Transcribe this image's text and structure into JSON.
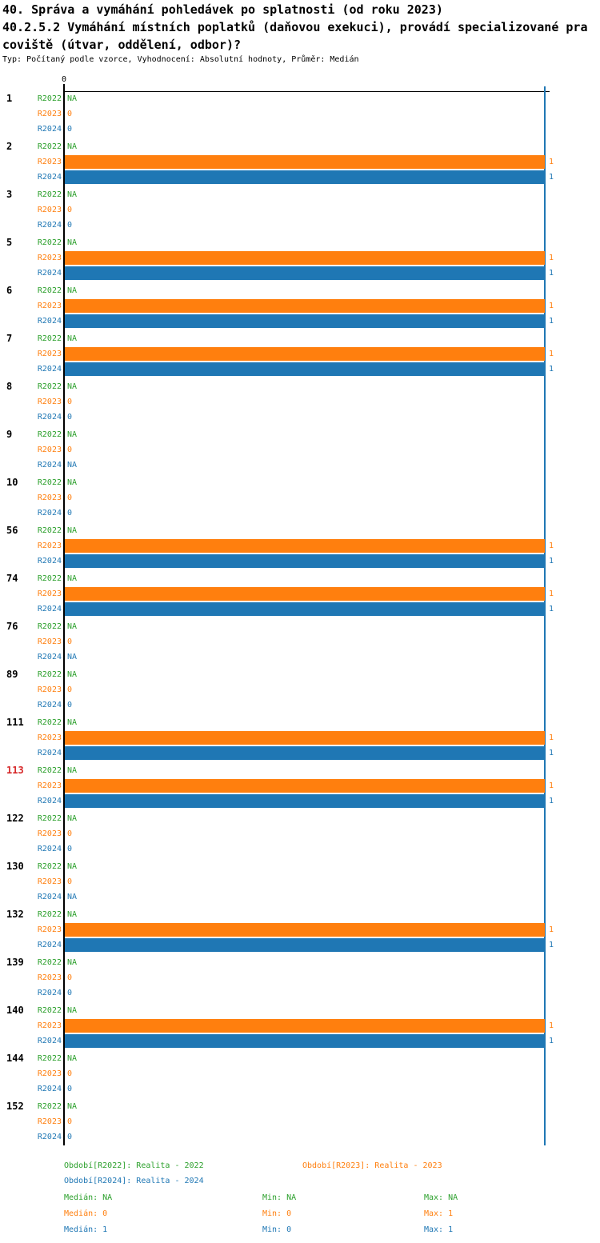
{
  "header": {
    "title_line1": "40. Správa a vymáhání pohledávek po splatnosti (od roku 2023)",
    "title_line2": "40.2.5.2 Vymáhání místních poplatků (daňovou exekuci), provádí specializované pra",
    "title_line3": "coviště (útvar, oddělení, odbor)?",
    "subtitle": "Typ: Počítaný podle vzorce, Vyhodnocení: Absolutní hodnoty, Průměr: Medián"
  },
  "chart_data": {
    "type": "bar",
    "orientation": "horizontal",
    "x_axis": {
      "tick_labels": [
        "0"
      ],
      "xlim": [
        0,
        1
      ],
      "median_gridline_value": 1
    },
    "series": [
      "R2022",
      "R2023",
      "R2024"
    ],
    "colors": {
      "r2022": "#2ca02c",
      "r2023": "#ff7f0e",
      "r2024": "#1f77b4",
      "highlight_row": "#d62728",
      "axis": "#000000",
      "gridline": "#1f77b4"
    },
    "groups": [
      {
        "id": "1",
        "highlight": false,
        "R2022": "NA",
        "R2023": "0",
        "R2024": "0"
      },
      {
        "id": "2",
        "highlight": false,
        "R2022": "NA",
        "R2023": "1",
        "R2024": "1"
      },
      {
        "id": "3",
        "highlight": false,
        "R2022": "NA",
        "R2023": "0",
        "R2024": "0"
      },
      {
        "id": "5",
        "highlight": false,
        "R2022": "NA",
        "R2023": "1",
        "R2024": "1"
      },
      {
        "id": "6",
        "highlight": false,
        "R2022": "NA",
        "R2023": "1",
        "R2024": "1"
      },
      {
        "id": "7",
        "highlight": false,
        "R2022": "NA",
        "R2023": "1",
        "R2024": "1"
      },
      {
        "id": "8",
        "highlight": false,
        "R2022": "NA",
        "R2023": "0",
        "R2024": "0"
      },
      {
        "id": "9",
        "highlight": false,
        "R2022": "NA",
        "R2023": "0",
        "R2024": "NA"
      },
      {
        "id": "10",
        "highlight": false,
        "R2022": "NA",
        "R2023": "0",
        "R2024": "0"
      },
      {
        "id": "56",
        "highlight": false,
        "R2022": "NA",
        "R2023": "1",
        "R2024": "1"
      },
      {
        "id": "74",
        "highlight": false,
        "R2022": "NA",
        "R2023": "1",
        "R2024": "1"
      },
      {
        "id": "76",
        "highlight": false,
        "R2022": "NA",
        "R2023": "0",
        "R2024": "NA"
      },
      {
        "id": "89",
        "highlight": false,
        "R2022": "NA",
        "R2023": "0",
        "R2024": "0"
      },
      {
        "id": "111",
        "highlight": false,
        "R2022": "NA",
        "R2023": "1",
        "R2024": "1"
      },
      {
        "id": "113",
        "highlight": true,
        "R2022": "NA",
        "R2023": "1",
        "R2024": "1"
      },
      {
        "id": "122",
        "highlight": false,
        "R2022": "NA",
        "R2023": "0",
        "R2024": "0"
      },
      {
        "id": "130",
        "highlight": false,
        "R2022": "NA",
        "R2023": "0",
        "R2024": "NA"
      },
      {
        "id": "132",
        "highlight": false,
        "R2022": "NA",
        "R2023": "1",
        "R2024": "1"
      },
      {
        "id": "139",
        "highlight": false,
        "R2022": "NA",
        "R2023": "0",
        "R2024": "0"
      },
      {
        "id": "140",
        "highlight": false,
        "R2022": "NA",
        "R2023": "1",
        "R2024": "1"
      },
      {
        "id": "144",
        "highlight": false,
        "R2022": "NA",
        "R2023": "0",
        "R2024": "0"
      },
      {
        "id": "152",
        "highlight": false,
        "R2022": "NA",
        "R2023": "0",
        "R2024": "0"
      }
    ],
    "legend": {
      "r2022": "Období[R2022]: Realita - 2022",
      "r2023": "Období[R2023]: Realita - 2023",
      "r2024": "Období[R2024]: Realita - 2024"
    },
    "stats": {
      "r2022": {
        "median": "Medián: NA",
        "min": "Min: NA",
        "max": "Max: NA"
      },
      "r2023": {
        "median": "Medián: 0",
        "min": "Min: 0",
        "max": "Max: 1"
      },
      "r2024": {
        "median": "Medián: 1",
        "min": "Min: 0",
        "max": "Max: 1"
      }
    }
  }
}
